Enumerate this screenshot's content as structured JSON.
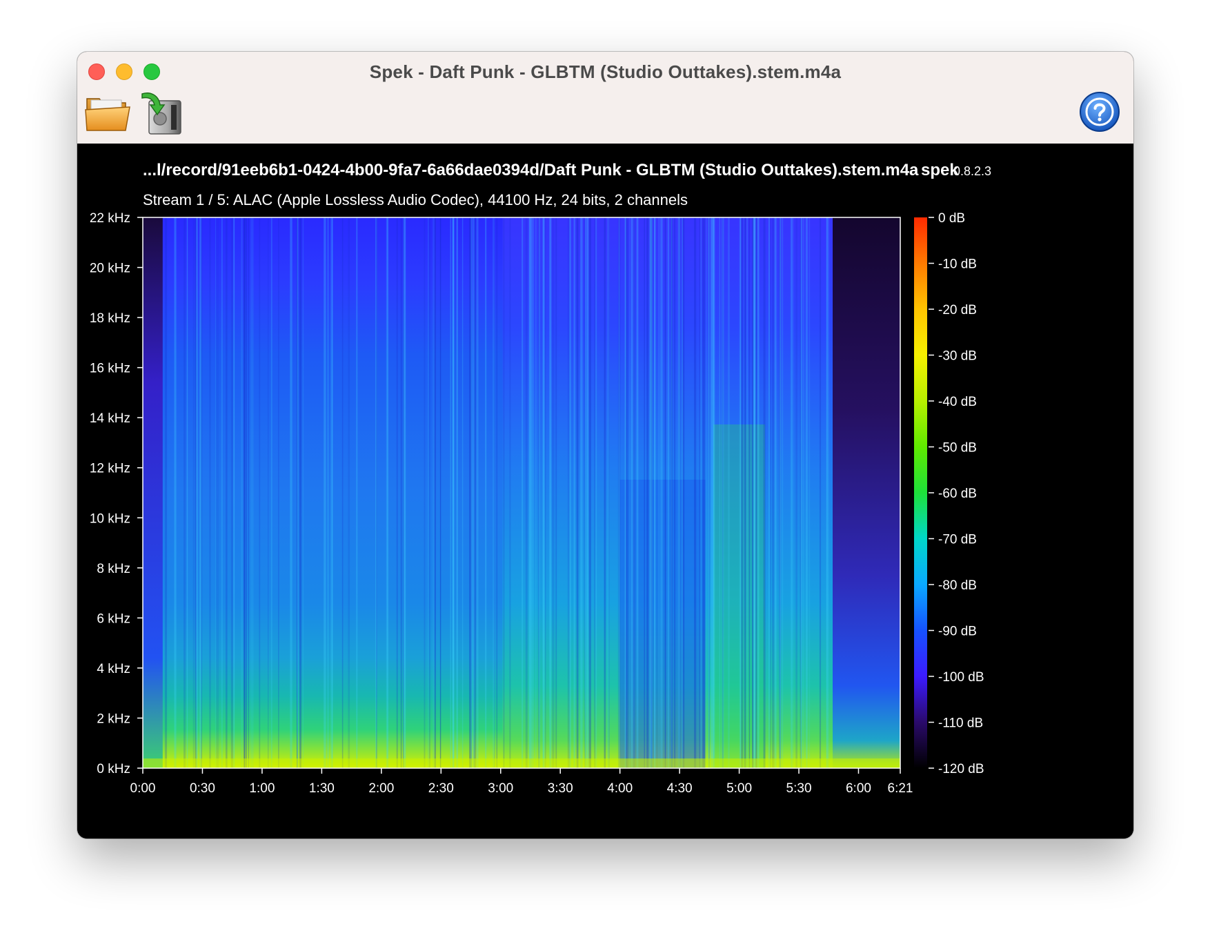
{
  "window": {
    "title": "Spek - Daft Punk - GLBTM (Studio Outtakes).stem.m4a"
  },
  "toolbar": {
    "open_icon": "folder-open-icon",
    "save_icon": "save-image-icon",
    "help_icon": "help-icon"
  },
  "spectrogram": {
    "file_label": "...l/record/91eeb6b1-0424-4b00-9fa7-6a66dae0394d/Daft Punk - GLBTM (Studio Outtakes).stem.m4a",
    "app_name": "spek",
    "app_version": "0.8.2.3",
    "stream_info": "Stream 1 / 5: ALAC (Apple Lossless Audio Codec), 44100 Hz, 24 bits, 2 channels"
  },
  "chart_data": {
    "type": "heatmap",
    "xlabel": "",
    "ylabel": "",
    "x_ticks": [
      "0:00",
      "0:30",
      "1:00",
      "1:30",
      "2:00",
      "2:30",
      "3:00",
      "3:30",
      "4:00",
      "4:30",
      "5:00",
      "5:30",
      "6:00",
      "6:21"
    ],
    "x_tick_seconds": [
      0,
      30,
      60,
      90,
      120,
      150,
      180,
      210,
      240,
      270,
      300,
      330,
      360,
      381
    ],
    "xlim_seconds": [
      0,
      381
    ],
    "y_ticks": [
      "0 kHz",
      "2 kHz",
      "4 kHz",
      "6 kHz",
      "8 kHz",
      "10 kHz",
      "12 kHz",
      "14 kHz",
      "16 kHz",
      "18 kHz",
      "20 kHz",
      "22 kHz"
    ],
    "y_tick_khz": [
      0,
      2,
      4,
      6,
      8,
      10,
      12,
      14,
      16,
      18,
      20,
      22
    ],
    "ylim_khz": [
      0,
      22
    ],
    "colorbar": {
      "labels": [
        "0 dB",
        "-10 dB",
        "-20 dB",
        "-30 dB",
        "-40 dB",
        "-50 dB",
        "-60 dB",
        "-70 dB",
        "-80 dB",
        "-90 dB",
        "-100 dB",
        "-110 dB",
        "-120 dB"
      ],
      "db_values": [
        0,
        -10,
        -20,
        -30,
        -40,
        -50,
        -60,
        -70,
        -80,
        -90,
        -100,
        -110,
        -120
      ],
      "range_db": [
        -120,
        0
      ],
      "colors": [
        "#ff2a00",
        "#ff7a00",
        "#ffc400",
        "#f6f000",
        "#b8ef00",
        "#5fea00",
        "#1ee03a",
        "#00d7c8",
        "#0aa8ff",
        "#1652ff",
        "#3c1bff",
        "#2a0a6a",
        "#000000"
      ]
    }
  }
}
